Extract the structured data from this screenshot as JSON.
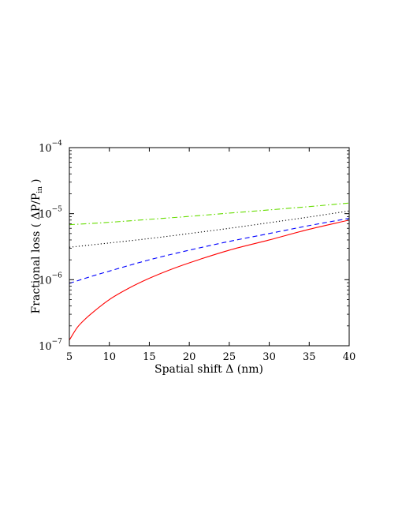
{
  "chart_data": {
    "type": "line",
    "xlabel": "Spatial shift Δ (nm)",
    "ylabel": "Fractional loss ( ΔP/P",
    "ylabel_sub": "in",
    "ylabel_close": ")",
    "xlim": [
      5,
      40
    ],
    "ylim": [
      1e-07,
      0.0001
    ],
    "yscale": "log",
    "grid": false,
    "x_ticks": [
      "5",
      "10",
      "15",
      "20",
      "25",
      "30",
      "35",
      "40"
    ],
    "y_ticks": [
      {
        "base": "10",
        "exp": "−7"
      },
      {
        "base": "10",
        "exp": "−6"
      },
      {
        "base": "10",
        "exp": "−5"
      },
      {
        "base": "10",
        "exp": "−4"
      }
    ],
    "series": [
      {
        "color": "#66dd00",
        "style": "dashdot",
        "x": [
          5,
          10,
          15,
          20,
          25,
          30,
          35,
          40
        ],
        "y": [
          6.8e-06,
          7.4e-06,
          8.2e-06,
          9.1e-06,
          1.02e-05,
          1.14e-05,
          1.28e-05,
          1.45e-05
        ]
      },
      {
        "color": "#000000",
        "style": "dotted",
        "x": [
          5,
          10,
          15,
          20,
          25,
          30,
          35,
          40
        ],
        "y": [
          3.1e-06,
          3.6e-06,
          4.2e-06,
          5e-06,
          6e-06,
          7.3e-06,
          8.9e-06,
          1.1e-05
        ]
      },
      {
        "color": "#0000ff",
        "style": "dashed",
        "x": [
          5,
          7.5,
          10,
          15,
          20,
          25,
          30,
          35,
          40
        ],
        "y": [
          8.8e-07,
          1.1e-06,
          1.35e-06,
          2e-06,
          2.8e-06,
          3.8e-06,
          5e-06,
          6.6e-06,
          8.5e-06
        ]
      },
      {
        "color": "#ff0000",
        "style": "solid",
        "x": [
          5,
          6,
          7,
          8,
          10,
          12.5,
          15,
          17.5,
          20,
          25,
          30,
          35,
          40
        ],
        "y": [
          1.22e-07,
          1.9e-07,
          2.55e-07,
          3.25e-07,
          5e-07,
          7.5e-07,
          1.05e-06,
          1.4e-06,
          1.8e-06,
          2.8e-06,
          4e-06,
          5.8e-06,
          8e-06
        ]
      }
    ]
  }
}
